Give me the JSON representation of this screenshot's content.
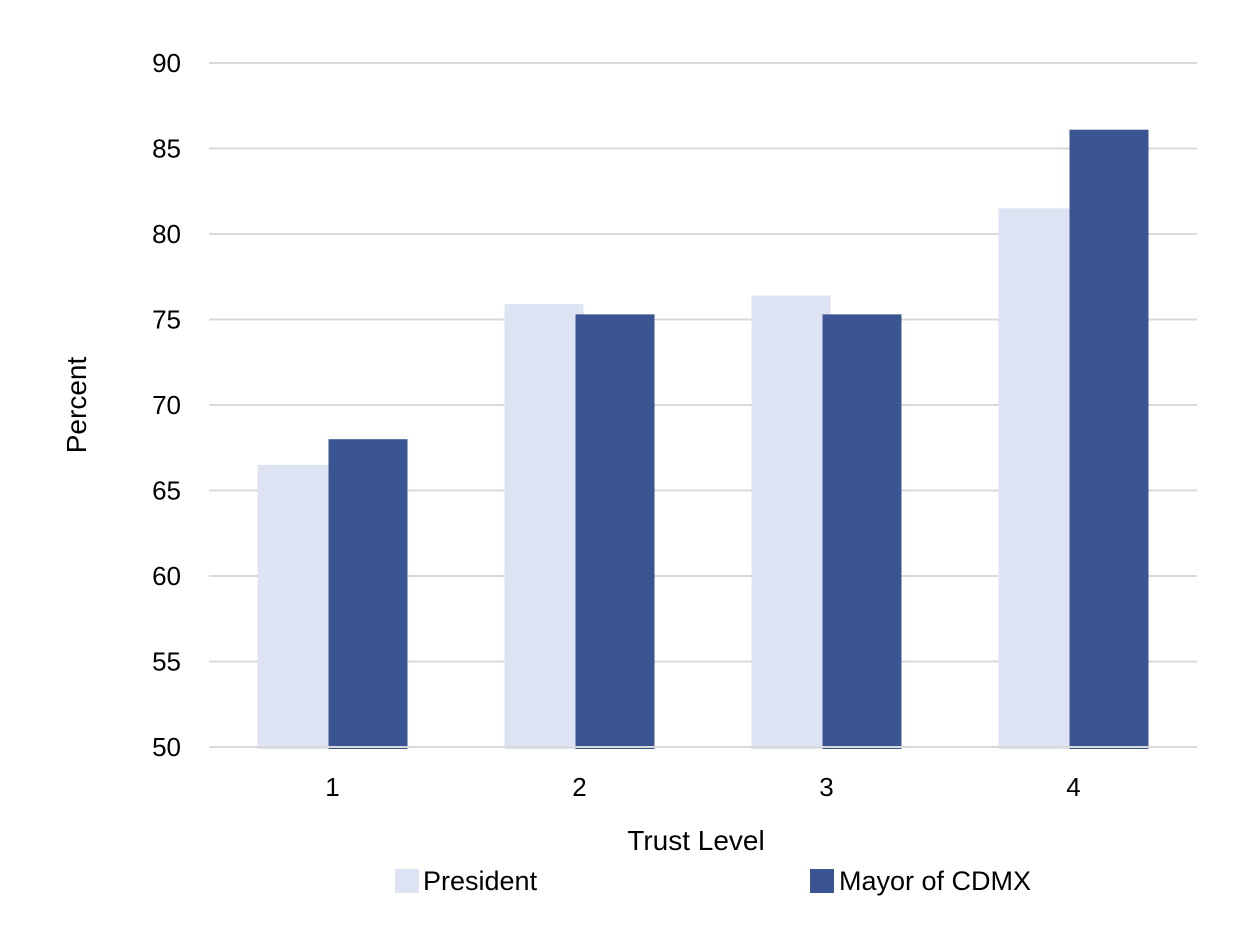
{
  "chart_data": {
    "type": "bar",
    "categories": [
      "1",
      "2",
      "3",
      "4"
    ],
    "series": [
      {
        "name": "President",
        "values": [
          66.5,
          75.9,
          76.4,
          81.5
        ],
        "color": "#dde3f2"
      },
      {
        "name": "Mayor of CDMX",
        "values": [
          68.0,
          75.3,
          75.3,
          86.1
        ],
        "color": "#3a5592"
      }
    ],
    "title": "",
    "xlabel": "Trust Level",
    "ylabel": "Percent",
    "ylim": [
      50,
      90
    ],
    "yticks": [
      "50",
      "55",
      "60",
      "65",
      "70",
      "75",
      "80",
      "85",
      "90"
    ],
    "grid": true,
    "grid_color": "#d9d9d9",
    "legend_position": "bottom"
  }
}
